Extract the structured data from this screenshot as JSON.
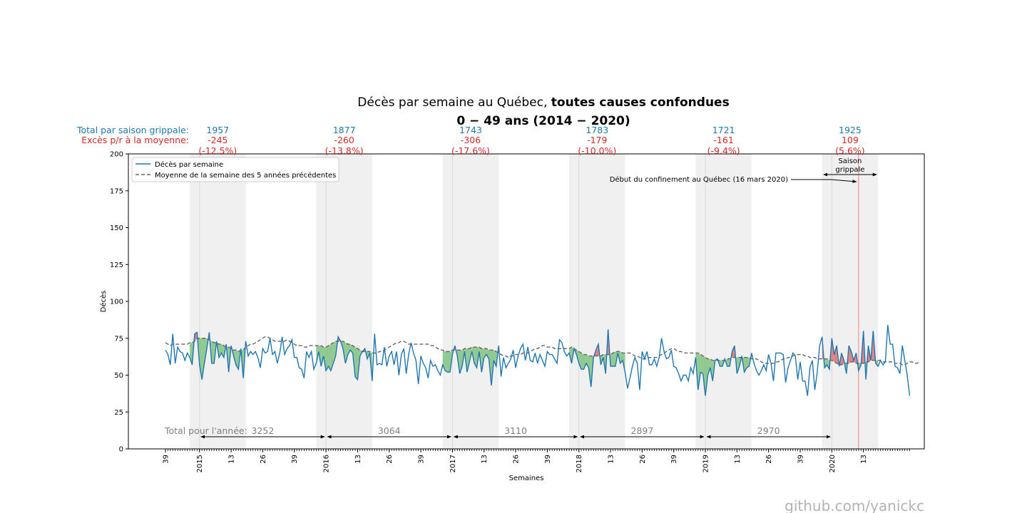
{
  "chart_data": {
    "type": "line",
    "title": "Décès par semaine au Québec, ",
    "title_bold": "toutes causes confondues",
    "subtitle": "0 − 49 ans (2014 − 2020)",
    "xlabel": "Semaines",
    "ylabel": "Décès",
    "ylim": [
      0,
      200
    ],
    "yticks": [
      0,
      25,
      50,
      75,
      100,
      125,
      150,
      175,
      200
    ],
    "xticks": [
      {
        "week": 0,
        "label": "39"
      },
      {
        "week": 14,
        "label": "2015"
      },
      {
        "week": 27,
        "label": "13"
      },
      {
        "week": 40,
        "label": "26"
      },
      {
        "week": 53,
        "label": "39"
      },
      {
        "week": 66,
        "label": "2016"
      },
      {
        "week": 79,
        "label": "13"
      },
      {
        "week": 92,
        "label": "26"
      },
      {
        "week": 105,
        "label": "39"
      },
      {
        "week": 118,
        "label": "2017"
      },
      {
        "week": 131,
        "label": "13"
      },
      {
        "week": 144,
        "label": "26"
      },
      {
        "week": 157,
        "label": "39"
      },
      {
        "week": 170,
        "label": "2018"
      },
      {
        "week": 183,
        "label": "13"
      },
      {
        "week": 196,
        "label": "26"
      },
      {
        "week": 209,
        "label": "39"
      },
      {
        "week": 222,
        "label": "2019"
      },
      {
        "week": 235,
        "label": "13"
      },
      {
        "week": 248,
        "label": "26"
      },
      {
        "week": 261,
        "label": "39"
      },
      {
        "week": 274,
        "label": "2020"
      },
      {
        "week": 287,
        "label": "13"
      }
    ],
    "series": [
      {
        "name": "Décès par semaine",
        "color": "#1f77b4",
        "values": [
          67,
          64,
          57,
          78,
          58,
          69,
          66,
          65,
          60,
          65,
          62,
          57,
          78,
          79,
          57,
          47,
          58,
          68,
          79,
          58,
          58,
          73,
          62,
          65,
          62,
          71,
          52,
          70,
          63,
          57,
          54,
          68,
          48,
          73,
          63,
          66,
          64,
          66,
          62,
          55,
          68,
          65,
          66,
          75,
          64,
          66,
          58,
          65,
          76,
          64,
          68,
          70,
          74,
          62,
          62,
          55,
          54,
          48,
          66,
          62,
          66,
          54,
          58,
          66,
          56,
          63,
          53,
          56,
          53,
          58,
          63,
          76,
          73,
          68,
          58,
          64,
          67,
          65,
          49,
          47,
          63,
          66,
          68,
          61,
          65,
          46,
          78,
          57,
          58,
          57,
          69,
          56,
          63,
          66,
          57,
          66,
          50,
          64,
          68,
          51,
          64,
          72,
          65,
          60,
          44,
          63,
          58,
          55,
          48,
          60,
          56,
          57,
          53,
          50,
          57,
          53,
          52,
          52,
          64,
          70,
          63,
          51,
          56,
          66,
          52,
          59,
          66,
          58,
          55,
          66,
          52,
          62,
          64,
          61,
          43,
          60,
          56,
          70,
          49,
          62,
          55,
          58,
          61,
          67,
          55,
          63,
          68,
          71,
          60,
          69,
          60,
          59,
          65,
          58,
          64,
          60,
          56,
          66,
          64,
          64,
          61,
          58,
          74,
          72,
          66,
          63,
          65,
          58,
          68,
          64,
          58,
          54,
          54,
          58,
          55,
          42,
          62,
          67,
          71,
          57,
          62,
          51,
          81,
          56,
          56,
          56,
          65,
          58,
          60,
          52,
          41,
          48,
          56,
          62,
          58,
          40,
          66,
          61,
          66,
          57,
          57,
          61,
          56,
          62,
          75,
          66,
          61,
          62,
          67,
          56,
          55,
          51,
          46,
          50,
          50,
          46,
          55,
          51,
          62,
          40,
          52,
          51,
          36,
          50,
          55,
          46,
          60,
          61,
          56,
          56,
          61,
          56,
          56,
          66,
          70,
          51,
          56,
          63,
          52,
          55,
          56,
          65,
          58,
          53,
          50,
          53,
          57,
          53,
          64,
          58,
          46,
          65,
          65,
          65,
          64,
          45,
          55,
          60,
          65,
          63,
          47,
          59,
          46,
          46,
          36,
          55,
          60,
          40,
          52,
          70,
          76,
          55,
          57,
          54,
          75,
          64,
          70,
          56,
          65,
          60,
          51,
          70,
          66,
          60,
          65,
          53,
          57,
          80,
          47,
          70,
          60,
          80,
          58,
          56,
          60,
          57,
          59,
          84,
          71,
          71,
          56,
          55,
          51,
          70,
          60,
          50,
          36
        ]
      },
      {
        "name": "Moyenne de la semaine des 5 années précédentes",
        "color": "#666666",
        "dashed": true,
        "values": [
          72,
          71,
          70,
          71,
          71,
          71,
          71,
          71,
          71,
          71,
          72,
          72,
          73,
          75,
          75,
          75,
          75,
          75,
          74,
          73,
          72,
          72,
          71,
          71,
          70,
          69,
          69,
          68,
          67,
          67,
          66,
          67,
          67,
          69,
          70,
          71,
          71,
          72,
          73,
          74,
          75,
          76,
          76,
          75,
          74,
          73,
          73,
          73,
          73,
          73,
          74,
          73,
          72,
          71,
          70,
          70,
          70,
          69,
          69,
          70,
          70,
          70,
          70,
          70,
          70,
          69,
          69,
          70,
          71,
          72,
          73,
          73,
          73,
          73,
          72,
          71,
          71,
          70,
          69,
          68,
          67,
          66,
          66,
          66,
          66,
          65,
          65,
          65,
          66,
          66,
          67,
          68,
          69,
          70,
          71,
          72,
          72,
          73,
          73,
          72,
          71,
          71,
          71,
          71,
          71,
          71,
          71,
          71,
          71,
          70,
          70,
          69,
          68,
          67,
          67,
          66,
          66,
          66,
          67,
          67,
          67,
          67,
          67,
          68,
          68,
          68,
          69,
          69,
          69,
          69,
          68,
          68,
          68,
          67,
          67,
          67,
          66,
          65,
          64,
          63,
          63,
          62,
          63,
          63,
          64,
          64,
          64,
          65,
          65,
          65,
          66,
          67,
          68,
          68,
          69,
          70,
          70,
          69,
          69,
          69,
          68,
          68,
          68,
          68,
          68,
          68,
          68,
          69,
          68,
          67,
          66,
          65,
          64,
          64,
          63,
          63,
          63,
          63,
          63,
          63,
          64,
          64,
          64,
          64,
          65,
          66,
          66,
          66,
          65,
          65,
          65,
          65,
          64,
          63,
          63,
          62,
          61,
          61,
          61,
          62,
          62,
          62,
          62,
          63,
          64,
          65,
          66,
          67,
          68,
          68,
          67,
          66,
          66,
          65,
          65,
          65,
          65,
          65,
          65,
          65,
          64,
          63,
          62,
          61,
          61,
          60,
          60,
          60,
          60,
          60,
          60,
          61,
          61,
          62,
          62,
          62,
          62,
          62,
          62,
          62,
          62,
          61,
          61,
          61,
          60,
          59,
          58,
          58,
          58,
          58,
          58,
          59,
          59,
          60,
          61,
          61,
          62,
          62,
          63,
          64,
          64,
          64,
          64,
          63,
          63,
          62,
          62,
          62,
          61,
          61,
          61,
          61,
          61,
          60,
          60,
          59,
          58,
          57,
          57,
          58,
          58,
          58,
          59,
          59,
          58,
          58,
          58,
          58,
          59,
          59,
          60,
          60,
          60,
          60,
          60,
          59,
          59,
          59,
          59,
          59,
          58,
          58,
          58,
          57,
          57,
          58,
          59,
          59,
          58,
          58,
          59
        ]
      }
    ],
    "legend_position": "upper left",
    "flu_seasons": [
      {
        "start": 10,
        "end": 33
      },
      {
        "start": 62,
        "end": 85
      },
      {
        "start": 114,
        "end": 137
      },
      {
        "start": 166,
        "end": 189
      },
      {
        "start": 218,
        "end": 241
      },
      {
        "start": 270,
        "end": 293
      }
    ],
    "season_labels": [
      {
        "total": "1957",
        "excess": "-245",
        "pct": "(-12.5%)"
      },
      {
        "total": "1877",
        "excess": "-260",
        "pct": "(-13.8%)"
      },
      {
        "total": "1743",
        "excess": "-306",
        "pct": "(-17.6%)"
      },
      {
        "total": "1783",
        "excess": "-179",
        "pct": "(-10.0%)"
      },
      {
        "total": "1721",
        "excess": "-161",
        "pct": "(-9.4%)"
      },
      {
        "total": "1925",
        "excess": "109",
        "pct": "(5.6%)"
      }
    ],
    "season_total_label": "Total par saison grippale:",
    "season_excess_label": "Excès p/r à la moyenne:",
    "year_total_label": "Total pour l'année:",
    "year_totals": [
      {
        "from_week": 14,
        "to_week": 66,
        "value": "3252"
      },
      {
        "from_week": 66,
        "to_week": 118,
        "value": "3064"
      },
      {
        "from_week": 118,
        "to_week": 170,
        "value": "3110"
      },
      {
        "from_week": 170,
        "to_week": 222,
        "value": "2897"
      },
      {
        "from_week": 222,
        "to_week": 274,
        "value": "2970"
      }
    ],
    "annotations": {
      "lockdown_text": "Début du confinement au Québec (16 mars 2020)",
      "lockdown_week": 285,
      "season_text_line1": "Saison",
      "season_text_line2": "grippale"
    },
    "colors": {
      "deaths": "#1f77b4",
      "average": "#666666",
      "below_fill": "#8fc98f",
      "above_fill": "#e08080",
      "season_shade": "#f0f0f0",
      "lockdown_line": "#f08080",
      "total_blue": "#1f77b4",
      "excess_red": "#d62728"
    }
  },
  "watermark": "github.com/yanickc"
}
